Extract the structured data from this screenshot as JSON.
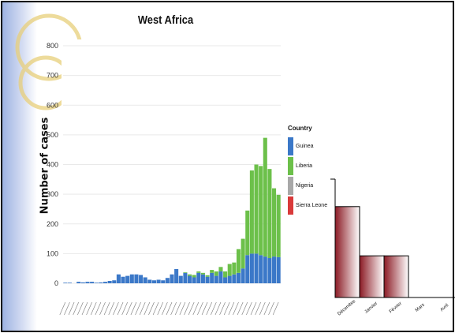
{
  "chart_data": [
    {
      "type": "bar",
      "stacked": true,
      "title": "West Africa",
      "xlabel": "",
      "ylabel": "Number of cases",
      "ylim": [
        0,
        800
      ],
      "yticks": [
        0,
        100,
        200,
        300,
        400,
        500,
        600,
        700,
        800
      ],
      "grid": true,
      "legend_title": "Country",
      "legend_position": "right",
      "categories": [
        "w01",
        "w02",
        "w03",
        "w04",
        "w05",
        "w06",
        "w07",
        "w08",
        "w09",
        "w10",
        "w11",
        "w12",
        "w13",
        "w14",
        "w15",
        "w16",
        "w17",
        "w18",
        "w19",
        "w20",
        "w21",
        "w22",
        "w23",
        "w24",
        "w25",
        "w26",
        "w27",
        "w28",
        "w29",
        "w30",
        "w31",
        "w32",
        "w33",
        "w34",
        "w35",
        "w36",
        "w37",
        "w38",
        "w39",
        "w40",
        "w41",
        "w42",
        "w43",
        "w44",
        "w45",
        "w46",
        "w47",
        "w48",
        "w49"
      ],
      "series": [
        {
          "name": "Guinea",
          "color": "#3b78c8",
          "values": [
            2,
            2,
            0,
            5,
            3,
            5,
            5,
            2,
            3,
            5,
            8,
            10,
            30,
            22,
            25,
            30,
            30,
            28,
            20,
            12,
            10,
            12,
            10,
            18,
            30,
            48,
            25,
            35,
            25,
            20,
            35,
            30,
            22,
            35,
            25,
            40,
            20,
            25,
            30,
            35,
            50,
            95,
            100,
            100,
            95,
            90,
            85,
            90,
            88
          ]
        },
        {
          "name": "Liberia",
          "color": "#6cc04a",
          "values": [
            0,
            0,
            0,
            0,
            0,
            0,
            0,
            0,
            0,
            0,
            0,
            0,
            0,
            0,
            0,
            0,
            0,
            0,
            0,
            0,
            0,
            0,
            0,
            0,
            0,
            0,
            0,
            2,
            5,
            8,
            5,
            5,
            5,
            10,
            15,
            15,
            20,
            40,
            40,
            80,
            100,
            150,
            280,
            300,
            300,
            400,
            300,
            230,
            210
          ]
        },
        {
          "name": "Nigeria",
          "color": "#a8a8a8",
          "values": [
            0,
            0,
            0,
            0,
            0,
            0,
            0,
            0,
            0,
            0,
            0,
            0,
            0,
            0,
            0,
            0,
            0,
            0,
            0,
            0,
            0,
            0,
            0,
            0,
            0,
            0,
            0,
            0,
            0,
            0,
            0,
            0,
            0,
            0,
            0,
            0,
            0,
            0,
            0,
            0,
            0,
            0,
            0,
            0,
            0,
            0,
            0,
            0,
            0
          ]
        },
        {
          "name": "Sierra Leone",
          "color": "#d93a3a",
          "values": [
            0,
            0,
            0,
            0,
            0,
            0,
            0,
            0,
            0,
            0,
            0,
            0,
            0,
            0,
            0,
            0,
            0,
            0,
            0,
            0,
            0,
            0,
            0,
            0,
            0,
            0,
            0,
            0,
            0,
            0,
            0,
            0,
            0,
            0,
            0,
            0,
            0,
            0,
            0,
            0,
            0,
            0,
            0,
            0,
            0,
            0,
            0,
            0,
            0
          ]
        }
      ]
    },
    {
      "type": "bar",
      "title": "",
      "xlabel": "",
      "ylabel": "",
      "ylim": [
        0,
        4
      ],
      "categories": [
        "Décembre",
        "Janvier",
        "Février",
        "Mars",
        "Avril"
      ],
      "values": [
        2.4,
        1.1,
        1.1,
        0,
        0
      ],
      "bar_gradient": [
        "#8b1a24",
        "#ffffff"
      ]
    }
  ]
}
